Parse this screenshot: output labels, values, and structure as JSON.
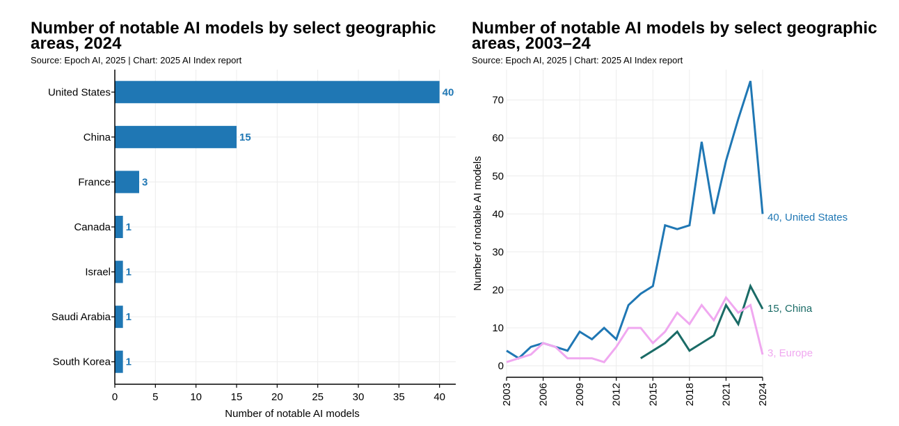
{
  "chart_data": [
    {
      "type": "bar",
      "orientation": "horizontal",
      "title": "Number of notable AI models by select geographic areas, 2024",
      "subtitle": "Source: Epoch AI, 2025 | Chart: 2025 AI Index report",
      "categories": [
        "United States",
        "China",
        "France",
        "Canada",
        "Israel",
        "Saudi Arabia",
        "South Korea"
      ],
      "values": [
        40,
        15,
        3,
        1,
        1,
        1,
        1
      ],
      "xlabel": "Number of notable AI models",
      "ylabel": "",
      "xlim": [
        0,
        42
      ],
      "xticks": [
        0,
        5,
        10,
        15,
        20,
        25,
        30,
        35,
        40
      ],
      "grid": true,
      "color": "#1f77b4"
    },
    {
      "type": "line",
      "title": "Number of notable AI models by select geographic areas, 2003–24",
      "subtitle": "Source: Epoch AI, 2025 | Chart: 2025 AI Index report",
      "xlabel": "",
      "ylabel": "Number of notable AI models",
      "xlim": [
        2003,
        2024
      ],
      "ylim": [
        -3,
        78
      ],
      "xticks": [
        2003,
        2006,
        2009,
        2012,
        2015,
        2018,
        2021,
        2024
      ],
      "yticks": [
        0,
        10,
        20,
        30,
        40,
        50,
        60,
        70
      ],
      "grid": true,
      "series": [
        {
          "name": "United States",
          "end_label": "40, United States",
          "color": "#1f77b4",
          "x": [
            2003,
            2004,
            2005,
            2006,
            2007,
            2008,
            2009,
            2010,
            2011,
            2012,
            2013,
            2014,
            2015,
            2016,
            2017,
            2018,
            2019,
            2020,
            2021,
            2022,
            2023,
            2024
          ],
          "values": [
            4,
            2,
            5,
            6,
            5,
            4,
            9,
            7,
            10,
            7,
            16,
            19,
            21,
            37,
            36,
            37,
            59,
            40,
            54,
            65,
            75,
            40
          ]
        },
        {
          "name": "China",
          "end_label": "15, China",
          "color": "#1a6b66",
          "x": [
            2014,
            2015,
            2016,
            2017,
            2018,
            2019,
            2020,
            2021,
            2022,
            2023,
            2024
          ],
          "values": [
            2,
            4,
            6,
            9,
            4,
            6,
            8,
            16,
            11,
            21,
            15
          ]
        },
        {
          "name": "Europe",
          "end_label": "3, Europe",
          "color": "#f0a8f0",
          "x": [
            2003,
            2004,
            2005,
            2006,
            2007,
            2008,
            2009,
            2010,
            2011,
            2012,
            2013,
            2014,
            2015,
            2016,
            2017,
            2018,
            2019,
            2020,
            2021,
            2022,
            2023,
            2024
          ],
          "values": [
            1,
            2,
            3,
            6,
            5,
            2,
            2,
            2,
            1,
            5,
            10,
            10,
            6,
            9,
            14,
            11,
            16,
            12,
            18,
            14,
            16,
            3
          ]
        }
      ]
    }
  ]
}
